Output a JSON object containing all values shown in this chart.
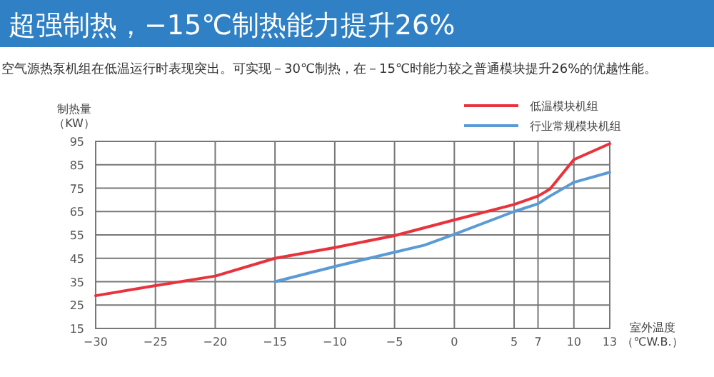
{
  "chart_data": {
    "type": "line",
    "title": "超强制热，−15℃制热能力提升26%",
    "subtitle": "空气源热泵机组在低温运行时表现突出。可实现－30℃制热，在－15℃时能力较之普通模块提升26%的优越性能。",
    "xlabel": "室外温度（℃W.B.）",
    "ylabel": "制热量（KW）",
    "series": [
      {
        "name": "低温模块机组",
        "color": "#e8323c",
        "x": [
          -30,
          -25,
          -20,
          -15,
          -10,
          -5,
          0,
          5,
          7,
          8,
          10,
          13
        ],
        "values": [
          29,
          33.3,
          37.4,
          45,
          49.6,
          54.7,
          61.4,
          68,
          71.6,
          74.6,
          87.2,
          94
        ]
      },
      {
        "name": "行业常规模块机组",
        "color": "#5b9bd5",
        "x": [
          -15,
          -10,
          -5,
          -2.5,
          0,
          5,
          7,
          8,
          10,
          13
        ],
        "values": [
          35,
          41.5,
          47.6,
          50.6,
          55.3,
          65,
          68.3,
          71.6,
          77.5,
          81.8
        ]
      }
    ],
    "xlim": [
      -30,
      13
    ],
    "xticks": [
      {
        "value": -30,
        "label": "−30"
      },
      {
        "value": -25,
        "label": "−25"
      },
      {
        "value": -20,
        "label": "−20"
      },
      {
        "value": -15,
        "label": "−15"
      },
      {
        "value": -10,
        "label": "−10"
      },
      {
        "value": -5,
        "label": "−5"
      },
      0,
      5,
      7,
      10,
      13
    ],
    "ylim": [
      15,
      95
    ],
    "yticks": [
      15,
      25,
      35,
      45,
      55,
      65,
      75,
      85,
      95
    ],
    "grid": true,
    "legend": "top right",
    "line_style": "solid",
    "marker": "none"
  }
}
